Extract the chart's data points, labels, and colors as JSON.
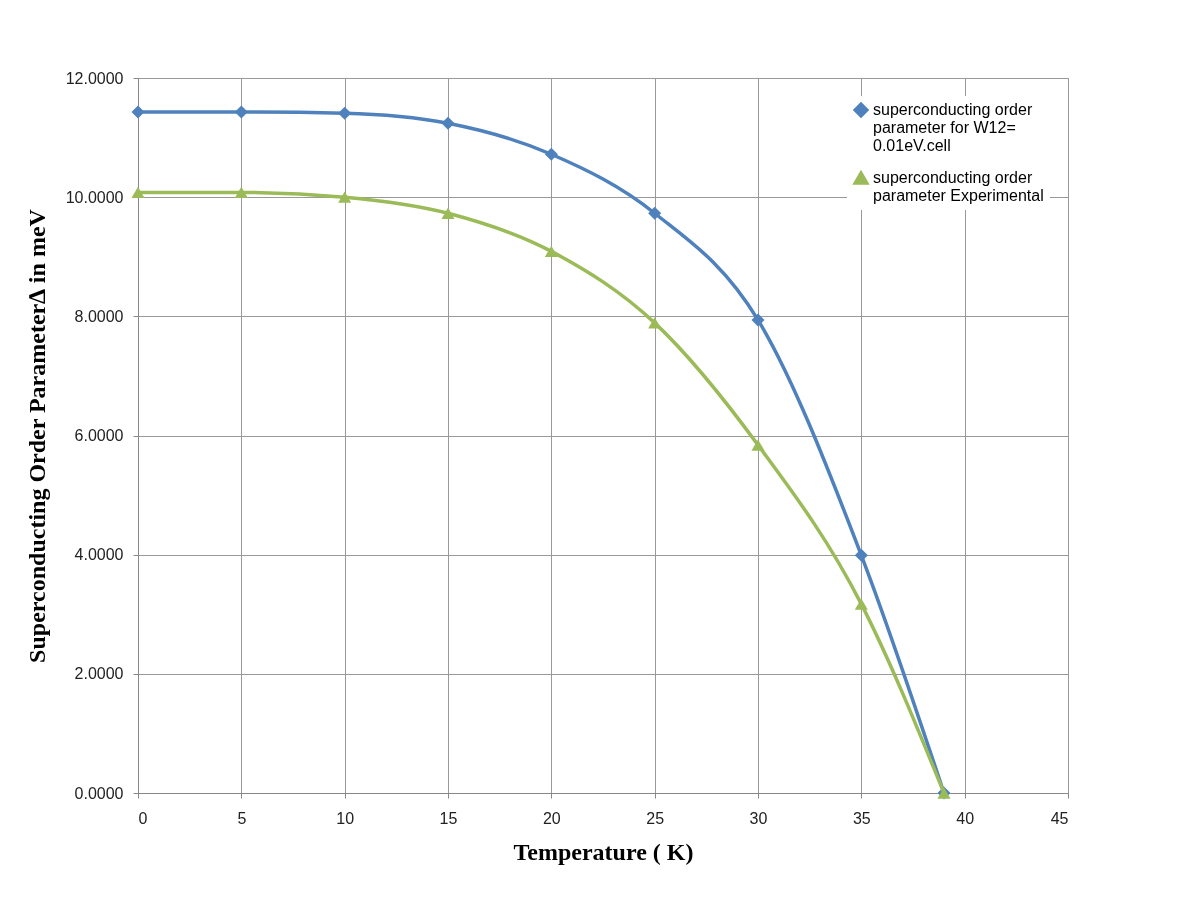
{
  "chart_data": {
    "type": "line",
    "xlabel": "Temperature ( K)",
    "ylabel": "Superconducting Order Parameter∆ in meV",
    "x": [
      0,
      5,
      10,
      15,
      20,
      25,
      30,
      35,
      39
    ],
    "series": [
      {
        "name": "superconducting order parameter for W12= 0.01eV.cell",
        "color": "#4f81bd",
        "marker": "diamond",
        "values": [
          11.43,
          11.43,
          11.41,
          11.24,
          10.72,
          9.73,
          7.94,
          3.99,
          0
        ]
      },
      {
        "name": " superconducting order parameter Experimental",
        "color": "#9bbb59",
        "marker": "triangle",
        "values": [
          10.08,
          10.08,
          10.0,
          9.73,
          9.09,
          7.89,
          5.84,
          3.17,
          0
        ]
      }
    ],
    "xlim": [
      0,
      45
    ],
    "xticks": [
      0,
      5,
      10,
      15,
      20,
      25,
      30,
      35,
      40,
      45
    ],
    "ylim": [
      0,
      12
    ],
    "yticks": [
      {
        "value": 0,
        "label": "0.0000"
      },
      {
        "value": 2,
        "label": "2.0000"
      },
      {
        "value": 4,
        "label": "4.0000"
      },
      {
        "value": 6,
        "label": "6.0000"
      },
      {
        "value": 8,
        "label": "8.0000"
      },
      {
        "value": 10,
        "label": "10.0000"
      },
      {
        "value": 12,
        "label": "12.0000"
      }
    ],
    "grid": true,
    "legend": "top right",
    "line_style": "solid"
  }
}
